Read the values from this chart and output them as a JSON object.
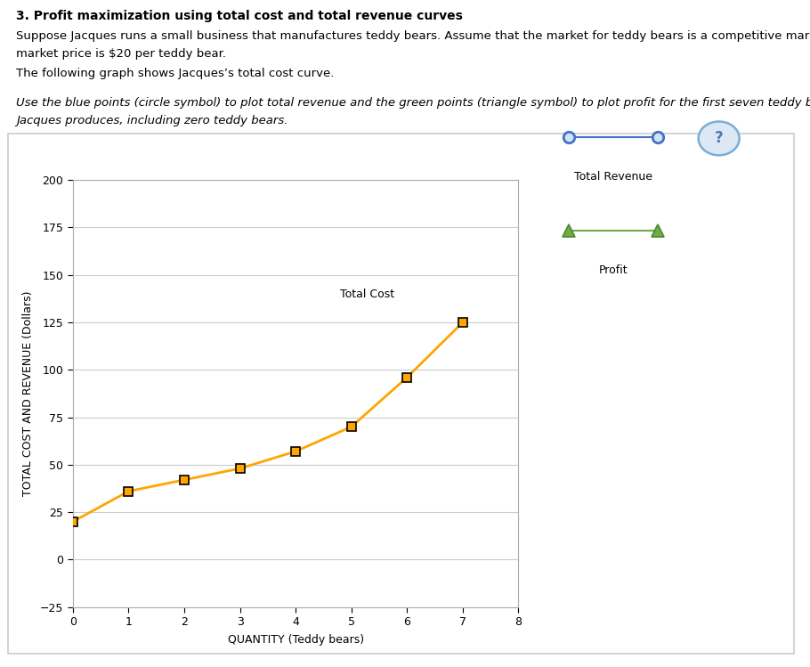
{
  "title_bold": "3. Profit maximization using total cost and total revenue curves",
  "subtitle1": "Suppose Jacques runs a small business that manufactures teddy bears. Assume that the market for teddy bears is a competitive market, and the",
  "subtitle2": "market price is $20 per teddy bear.",
  "subtitle3": "The following graph shows Jacques’s total cost curve.",
  "subtitle4_italic": "Use the blue points (circle symbol) to plot total revenue and the green points (triangle symbol) to plot profit for the first seven teddy bears that",
  "subtitle5_italic": "Jacques produces, including zero teddy bears.",
  "quantity": [
    0,
    1,
    2,
    3,
    4,
    5,
    6,
    7
  ],
  "total_cost": [
    20,
    36,
    42,
    48,
    57,
    70,
    96,
    125
  ],
  "price": 20,
  "tc_color": "#FFA500",
  "tc_marker": "s",
  "tc_marker_facecolor": "#FFA500",
  "tc_marker_edge": "#000000",
  "tr_color": "#4472C4",
  "tr_marker": "o",
  "tr_marker_face": "#ffffff",
  "profit_color": "#70AD47",
  "profit_marker": "^",
  "ylabel": "TOTAL COST AND REVENUE (Dollars)",
  "xlabel": "QUANTITY (Teddy bears)",
  "ylim": [
    -25,
    200
  ],
  "xlim": [
    0,
    8
  ],
  "yticks": [
    -25,
    0,
    25,
    50,
    75,
    100,
    125,
    150,
    175,
    200
  ],
  "xticks": [
    0,
    1,
    2,
    3,
    4,
    5,
    6,
    7,
    8
  ],
  "tc_label": "Total Cost",
  "tr_label": "Total Revenue",
  "profit_label": "Profit",
  "bg_color": "#ffffff",
  "plot_bg": "#ffffff",
  "grid_color": "#cccccc",
  "border_color": "#cccccc"
}
